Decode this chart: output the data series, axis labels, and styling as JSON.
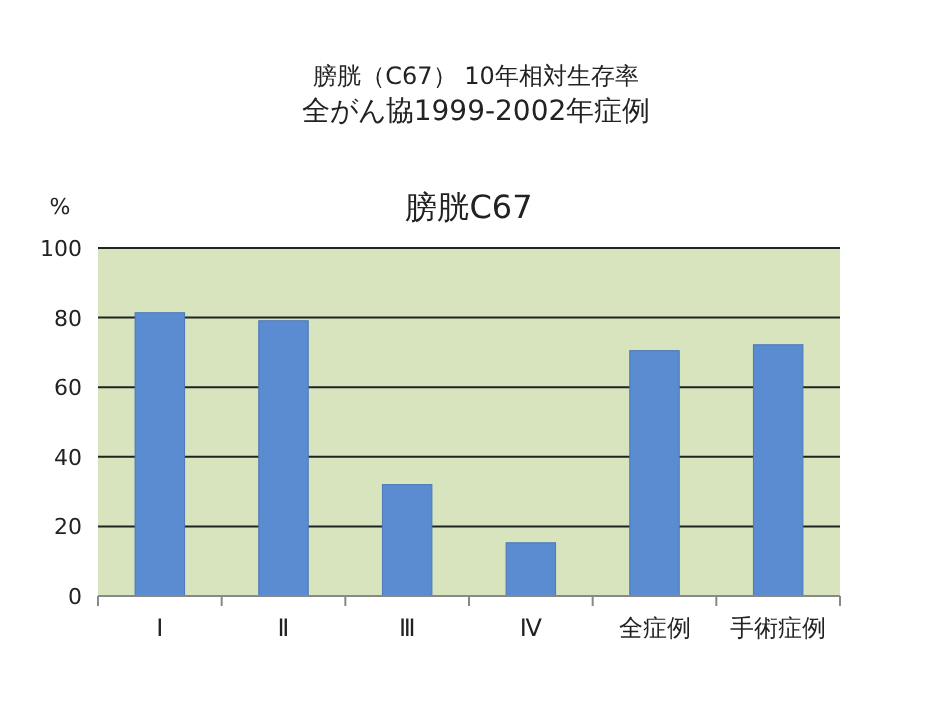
{
  "chart_data": {
    "type": "bar",
    "title": "膀胱C67",
    "annotations": [
      "膀胱（C67） 10年相対生存率"
    ],
    "subtitle": "全がん協1999-2002年症例",
    "ylabel": "%",
    "categories": [
      "Ⅰ",
      "Ⅱ",
      "Ⅲ",
      "Ⅳ",
      "全症例",
      "手術症例"
    ],
    "values": [
      81.4,
      79.1,
      32.0,
      15.3,
      70.5,
      72.2
    ],
    "color": "#5b8bd0",
    "ylim": [
      0,
      100
    ],
    "yticks": [
      0,
      20,
      40,
      60,
      80,
      100
    ],
    "grid": "y"
  }
}
